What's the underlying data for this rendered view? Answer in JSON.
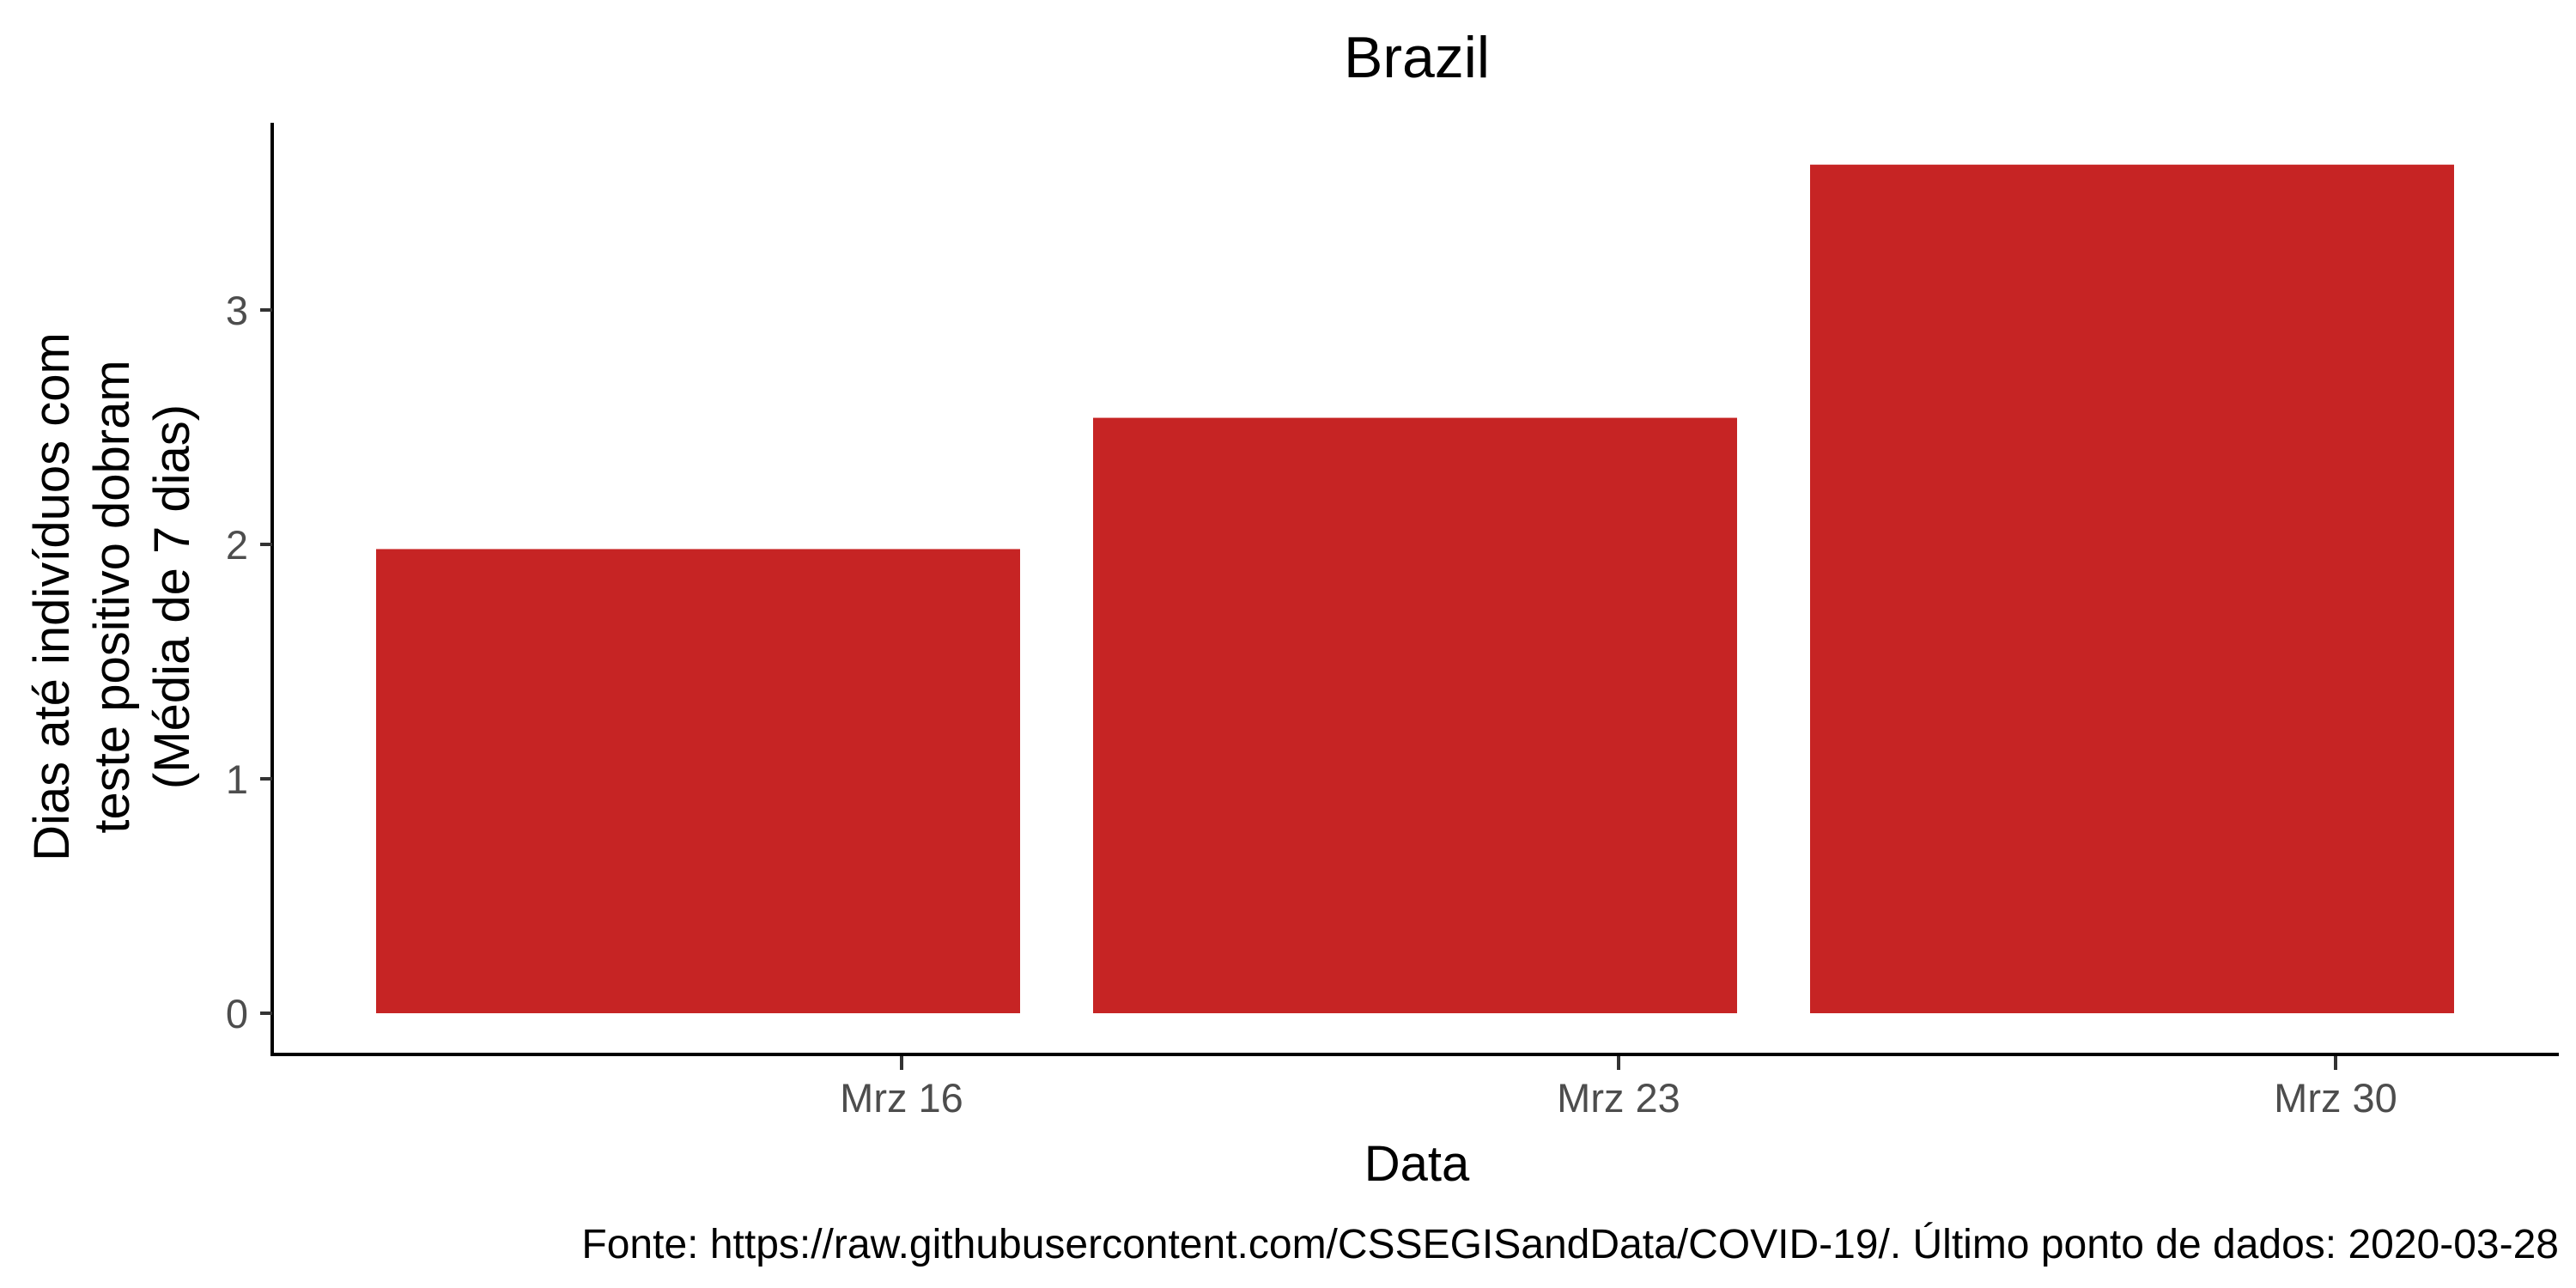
{
  "chart_data": {
    "type": "bar",
    "title": "Brazil",
    "xlabel": "Data",
    "ylabel_lines": [
      "Dias até indivíduos com",
      "teste positivo dobram",
      "(Média de  7 dias)"
    ],
    "categories": [
      "Mrz 16",
      "Mrz 23",
      "Mrz 30"
    ],
    "values": [
      1.98,
      2.54,
      3.62
    ],
    "bar_color": "#c62424",
    "ylim": [
      0,
      3.8
    ],
    "yticks": [
      0,
      1,
      2,
      3
    ],
    "grid": false,
    "caption": "Fonte: https://raw.githubusercontent.com/CSSEGISandData/COVID-19/. Último ponto de dados: 2020-03-28"
  }
}
